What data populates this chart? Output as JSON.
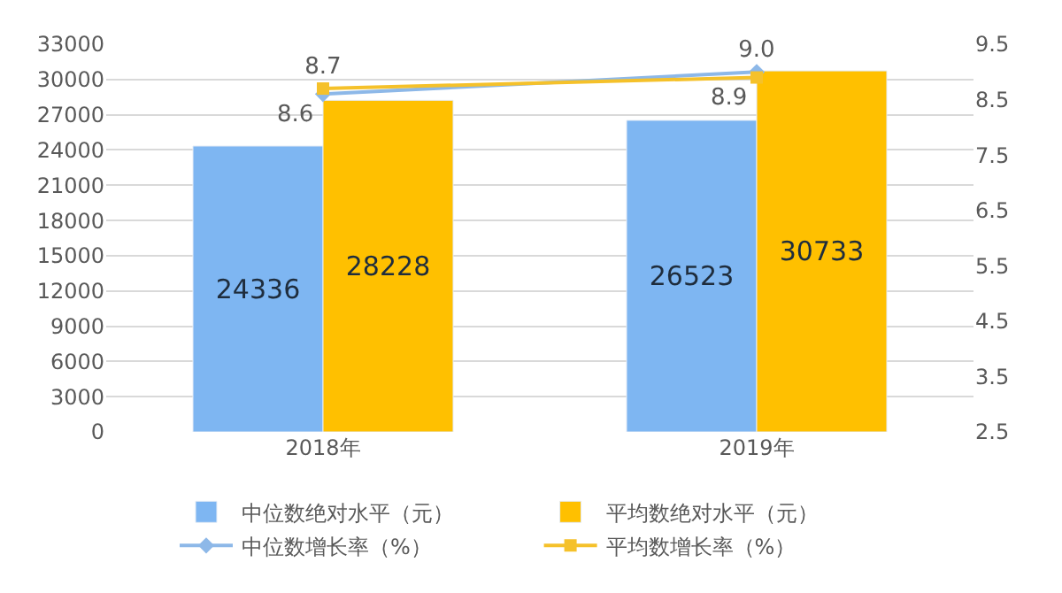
{
  "chart_data": {
    "type": "bar",
    "categories": [
      "2018年",
      "2019年"
    ],
    "series": [
      {
        "name": "中位数绝对水平（元）",
        "color": "#7eb6f2",
        "values": [
          24336,
          26523
        ]
      },
      {
        "name": "平均数绝对水平（元）",
        "color": "#ffc000",
        "values": [
          28228,
          30733
        ]
      },
      {
        "name": "中位数增长率（%）",
        "type": "line",
        "axis": "y2",
        "marker": "diamond",
        "color": "#8db8e8",
        "values": [
          8.6,
          9.0
        ],
        "value_labels": [
          "8.6",
          "9.0"
        ]
      },
      {
        "name": "平均数增长率（%）",
        "type": "line",
        "axis": "y2",
        "marker": "square",
        "color": "#f5c12a",
        "values": [
          8.7,
          8.9
        ],
        "value_labels": [
          "8.7",
          "8.9"
        ]
      }
    ],
    "ylim": [
      0,
      33000
    ],
    "yticks": [
      0,
      3000,
      6000,
      9000,
      12000,
      15000,
      18000,
      21000,
      24000,
      27000,
      30000,
      33000
    ],
    "y2lim": [
      2.5,
      9.5
    ],
    "y2ticks": [
      2.5,
      3.5,
      4.5,
      5.5,
      6.5,
      7.5,
      8.5,
      9.5
    ],
    "data_labels": true,
    "grid": "y",
    "legend": "bottom"
  }
}
